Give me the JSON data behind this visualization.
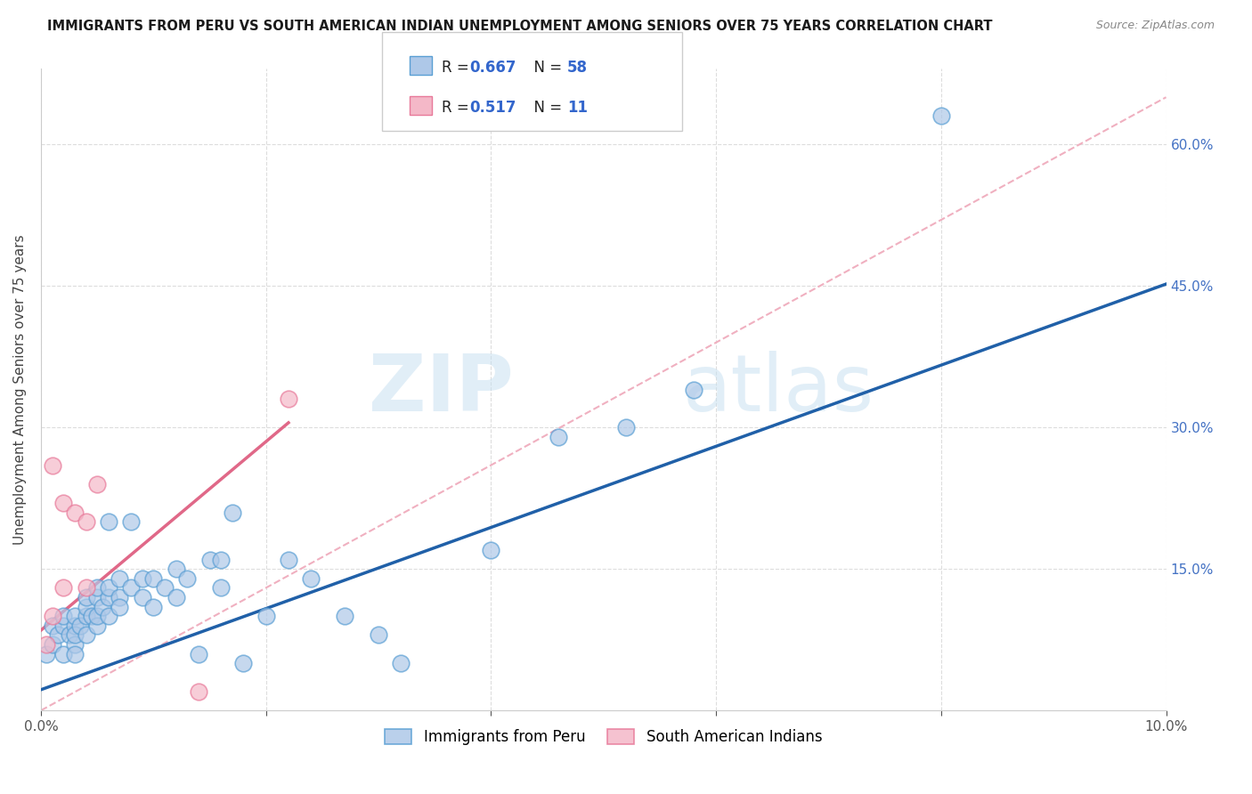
{
  "title": "IMMIGRANTS FROM PERU VS SOUTH AMERICAN INDIAN UNEMPLOYMENT AMONG SENIORS OVER 75 YEARS CORRELATION CHART",
  "source": "Source: ZipAtlas.com",
  "ylabel": "Unemployment Among Seniors over 75 years",
  "xlim": [
    0.0,
    0.1
  ],
  "ylim": [
    0.0,
    0.68
  ],
  "xticks": [
    0.0,
    0.02,
    0.04,
    0.06,
    0.08,
    0.1
  ],
  "xticklabels": [
    "0.0%",
    "",
    "",
    "",
    "",
    "10.0%"
  ],
  "yticks": [
    0.0,
    0.15,
    0.3,
    0.45,
    0.6
  ],
  "yticklabels": [
    "",
    "15.0%",
    "30.0%",
    "45.0%",
    "60.0%"
  ],
  "watermark_zip": "ZIP",
  "watermark_atlas": "atlas",
  "legend_R1": "0.667",
  "legend_N1": "58",
  "legend_R2": "0.517",
  "legend_N2": "11",
  "legend_label1": "Immigrants from Peru",
  "legend_label2": "South American Indians",
  "blue_fill": "#aec8e8",
  "pink_fill": "#f4b8c8",
  "blue_edge": "#5a9fd4",
  "pink_edge": "#e87a9a",
  "blue_line_color": "#2060a8",
  "pink_line_color": "#e06888",
  "diag_line_color": "#f0b0c0",
  "peru_x": [
    0.0005,
    0.001,
    0.001,
    0.0015,
    0.002,
    0.002,
    0.002,
    0.0025,
    0.003,
    0.003,
    0.003,
    0.003,
    0.003,
    0.0035,
    0.004,
    0.004,
    0.004,
    0.004,
    0.0045,
    0.005,
    0.005,
    0.005,
    0.005,
    0.0055,
    0.006,
    0.006,
    0.006,
    0.006,
    0.007,
    0.007,
    0.007,
    0.008,
    0.008,
    0.009,
    0.009,
    0.01,
    0.01,
    0.011,
    0.012,
    0.012,
    0.013,
    0.014,
    0.015,
    0.016,
    0.016,
    0.017,
    0.018,
    0.02,
    0.022,
    0.024,
    0.027,
    0.03,
    0.032,
    0.04,
    0.046,
    0.052,
    0.058,
    0.08
  ],
  "peru_y": [
    0.06,
    0.07,
    0.09,
    0.08,
    0.09,
    0.06,
    0.1,
    0.08,
    0.07,
    0.09,
    0.1,
    0.06,
    0.08,
    0.09,
    0.1,
    0.08,
    0.11,
    0.12,
    0.1,
    0.09,
    0.1,
    0.12,
    0.13,
    0.11,
    0.1,
    0.12,
    0.2,
    0.13,
    0.12,
    0.11,
    0.14,
    0.13,
    0.2,
    0.12,
    0.14,
    0.14,
    0.11,
    0.13,
    0.15,
    0.12,
    0.14,
    0.06,
    0.16,
    0.16,
    0.13,
    0.21,
    0.05,
    0.1,
    0.16,
    0.14,
    0.1,
    0.08,
    0.05,
    0.17,
    0.29,
    0.3,
    0.34,
    0.63
  ],
  "indian_x": [
    0.0005,
    0.001,
    0.001,
    0.002,
    0.002,
    0.003,
    0.004,
    0.004,
    0.005,
    0.014,
    0.022
  ],
  "indian_y": [
    0.07,
    0.1,
    0.26,
    0.22,
    0.13,
    0.21,
    0.13,
    0.2,
    0.24,
    0.02,
    0.33
  ],
  "blue_trend_x": [
    0.0,
    0.1
  ],
  "blue_trend_y": [
    0.022,
    0.452
  ],
  "pink_trend_x": [
    0.0,
    0.022
  ],
  "pink_trend_y": [
    0.085,
    0.305
  ],
  "diag_line_x": [
    0.0,
    0.1
  ],
  "diag_line_y": [
    0.0,
    0.65
  ]
}
